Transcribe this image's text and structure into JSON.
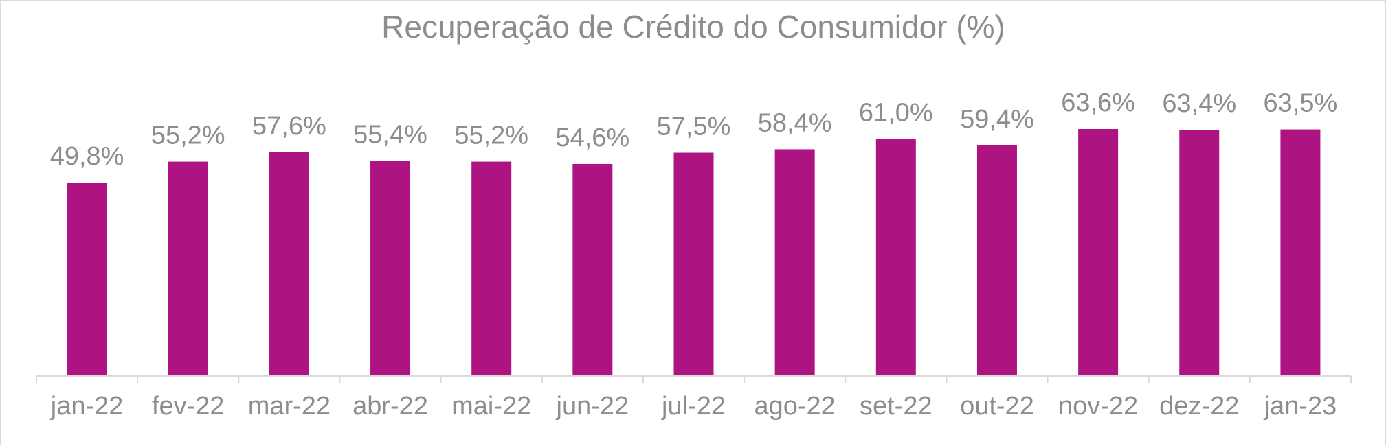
{
  "chart_data": {
    "type": "bar",
    "title": "Recuperação de Crédito do Consumidor (%)",
    "xlabel": "",
    "ylabel": "",
    "categories": [
      "jan-22",
      "fev-22",
      "mar-22",
      "abr-22",
      "mai-22",
      "jun-22",
      "jul-22",
      "ago-22",
      "set-22",
      "out-22",
      "nov-22",
      "dez-22",
      "jan-23"
    ],
    "values": [
      49.8,
      55.2,
      57.6,
      55.4,
      55.2,
      54.6,
      57.5,
      58.4,
      61.0,
      59.4,
      63.6,
      63.4,
      63.5
    ],
    "data_labels": [
      "49,8%",
      "55,2%",
      "57,6%",
      "55,4%",
      "55,2%",
      "54,6%",
      "57,5%",
      "58,4%",
      "61,0%",
      "59,4%",
      "63,6%",
      "63,4%",
      "63,5%"
    ],
    "ylim": [
      0,
      63.6
    ],
    "grid": false,
    "legend": "none",
    "colors": {
      "bar": "#ad1482",
      "text": "#8c8c91",
      "axis": "#d9d9d9"
    }
  }
}
